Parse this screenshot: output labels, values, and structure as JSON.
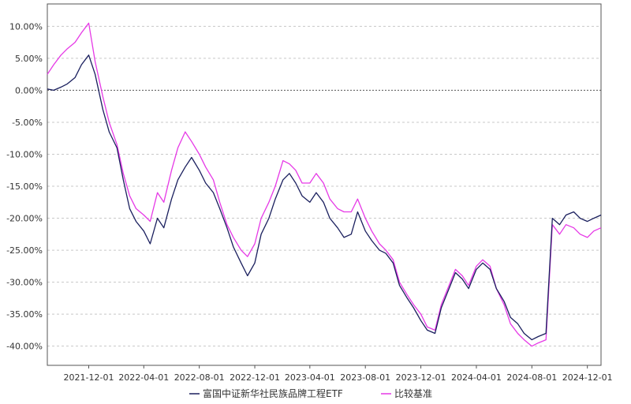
{
  "chart_data": {
    "type": "line",
    "title": "",
    "xlabel": "",
    "ylabel": "",
    "x_ticks": [
      "2021-12-01",
      "2022-04-01",
      "2022-08-01",
      "2022-12-01",
      "2023-04-01",
      "2023-08-01",
      "2023-12-01",
      "2024-04-01",
      "2024-08-01",
      "2024-12-01"
    ],
    "y_ticks": [
      "10.00%",
      "5.00%",
      "0.00%",
      "-5.00%",
      "-10.00%",
      "-15.00%",
      "-20.00%",
      "-25.00%",
      "-30.00%",
      "-35.00%",
      "-40.00%"
    ],
    "ylim": [
      -43,
      13.5
    ],
    "xlim": [
      "2021-09-01",
      "2024-12-31"
    ],
    "grid": true,
    "zero_line": true,
    "legend_position": "bottom-center",
    "x": [
      "2021-09-01",
      "2021-09-15",
      "2021-10-01",
      "2021-10-15",
      "2021-11-01",
      "2021-11-15",
      "2021-12-01",
      "2021-12-15",
      "2022-01-01",
      "2022-01-15",
      "2022-02-01",
      "2022-02-15",
      "2022-03-01",
      "2022-03-15",
      "2022-04-01",
      "2022-04-15",
      "2022-05-01",
      "2022-05-15",
      "2022-06-01",
      "2022-06-15",
      "2022-07-01",
      "2022-07-15",
      "2022-08-01",
      "2022-08-15",
      "2022-09-01",
      "2022-09-15",
      "2022-10-01",
      "2022-10-15",
      "2022-11-01",
      "2022-11-15",
      "2022-12-01",
      "2022-12-15",
      "2023-01-01",
      "2023-01-15",
      "2023-02-01",
      "2023-02-15",
      "2023-03-01",
      "2023-03-15",
      "2023-04-01",
      "2023-04-15",
      "2023-05-01",
      "2023-05-15",
      "2023-06-01",
      "2023-06-15",
      "2023-07-01",
      "2023-07-15",
      "2023-08-01",
      "2023-08-15",
      "2023-09-01",
      "2023-09-15",
      "2023-10-01",
      "2023-10-15",
      "2023-11-01",
      "2023-11-15",
      "2023-12-01",
      "2023-12-15",
      "2024-01-01",
      "2024-01-15",
      "2024-02-01",
      "2024-02-15",
      "2024-03-01",
      "2024-03-15",
      "2024-04-01",
      "2024-04-15",
      "2024-05-01",
      "2024-05-15",
      "2024-06-01",
      "2024-06-15",
      "2024-07-01",
      "2024-07-15",
      "2024-08-01",
      "2024-08-15",
      "2024-09-01",
      "2024-09-15",
      "2024-10-01",
      "2024-10-15",
      "2024-11-01",
      "2024-11-15",
      "2024-12-01",
      "2024-12-15",
      "2024-12-31"
    ],
    "series": [
      {
        "name": "富国中证新华社民族品牌工程ETF",
        "color": "#1a1f5e",
        "values": [
          0.2,
          0.0,
          0.5,
          1.0,
          2.0,
          4.0,
          5.5,
          2.5,
          -3.0,
          -6.5,
          -9.0,
          -14.0,
          -18.5,
          -20.5,
          -22.0,
          -24.0,
          -20.0,
          -21.5,
          -17.0,
          -14.0,
          -12.0,
          -10.5,
          -12.5,
          -14.5,
          -16.0,
          -18.5,
          -21.5,
          -24.5,
          -27.0,
          -29.0,
          -27.0,
          -22.5,
          -20.0,
          -17.0,
          -14.0,
          -13.0,
          -14.5,
          -16.5,
          -17.5,
          -16.0,
          -17.5,
          -20.0,
          -21.5,
          -23.0,
          -22.5,
          -19.0,
          -22.0,
          -23.5,
          -25.0,
          -25.5,
          -27.0,
          -30.5,
          -32.5,
          -34.0,
          -36.0,
          -37.5,
          -38.0,
          -34.0,
          -31.0,
          -28.5,
          -29.5,
          -31.0,
          -28.0,
          -27.0,
          -28.0,
          -31.0,
          -33.0,
          -35.5,
          -36.5,
          -38.0,
          -39.0,
          -38.5,
          -38.0,
          -20.0,
          -21.0,
          -19.5,
          -19.0,
          -20.0,
          -20.5,
          -20.0,
          -19.5
        ]
      },
      {
        "name": "比较基准",
        "color": "#e639e6",
        "values": [
          2.5,
          4.0,
          5.5,
          6.5,
          7.5,
          9.0,
          10.5,
          4.5,
          -1.0,
          -5.0,
          -8.5,
          -13.0,
          -16.5,
          -18.5,
          -19.5,
          -20.5,
          -16.0,
          -17.5,
          -12.5,
          -9.0,
          -6.5,
          -8.0,
          -10.0,
          -12.0,
          -14.0,
          -17.5,
          -21.0,
          -23.0,
          -25.0,
          -26.0,
          -24.0,
          -20.0,
          -17.5,
          -15.0,
          -11.0,
          -11.5,
          -12.5,
          -14.5,
          -14.5,
          -13.0,
          -14.5,
          -17.0,
          -18.5,
          -19.0,
          -19.0,
          -17.0,
          -20.0,
          -22.0,
          -24.0,
          -25.0,
          -26.5,
          -30.0,
          -32.0,
          -33.5,
          -35.0,
          -37.0,
          -37.5,
          -33.5,
          -30.5,
          -28.0,
          -29.0,
          -30.5,
          -27.5,
          -26.5,
          -27.5,
          -31.0,
          -33.5,
          -36.5,
          -38.0,
          -39.0,
          -40.0,
          -39.5,
          -39.0,
          -21.0,
          -22.5,
          -21.0,
          -21.5,
          -22.5,
          -23.0,
          -22.0,
          -21.5
        ]
      }
    ]
  }
}
